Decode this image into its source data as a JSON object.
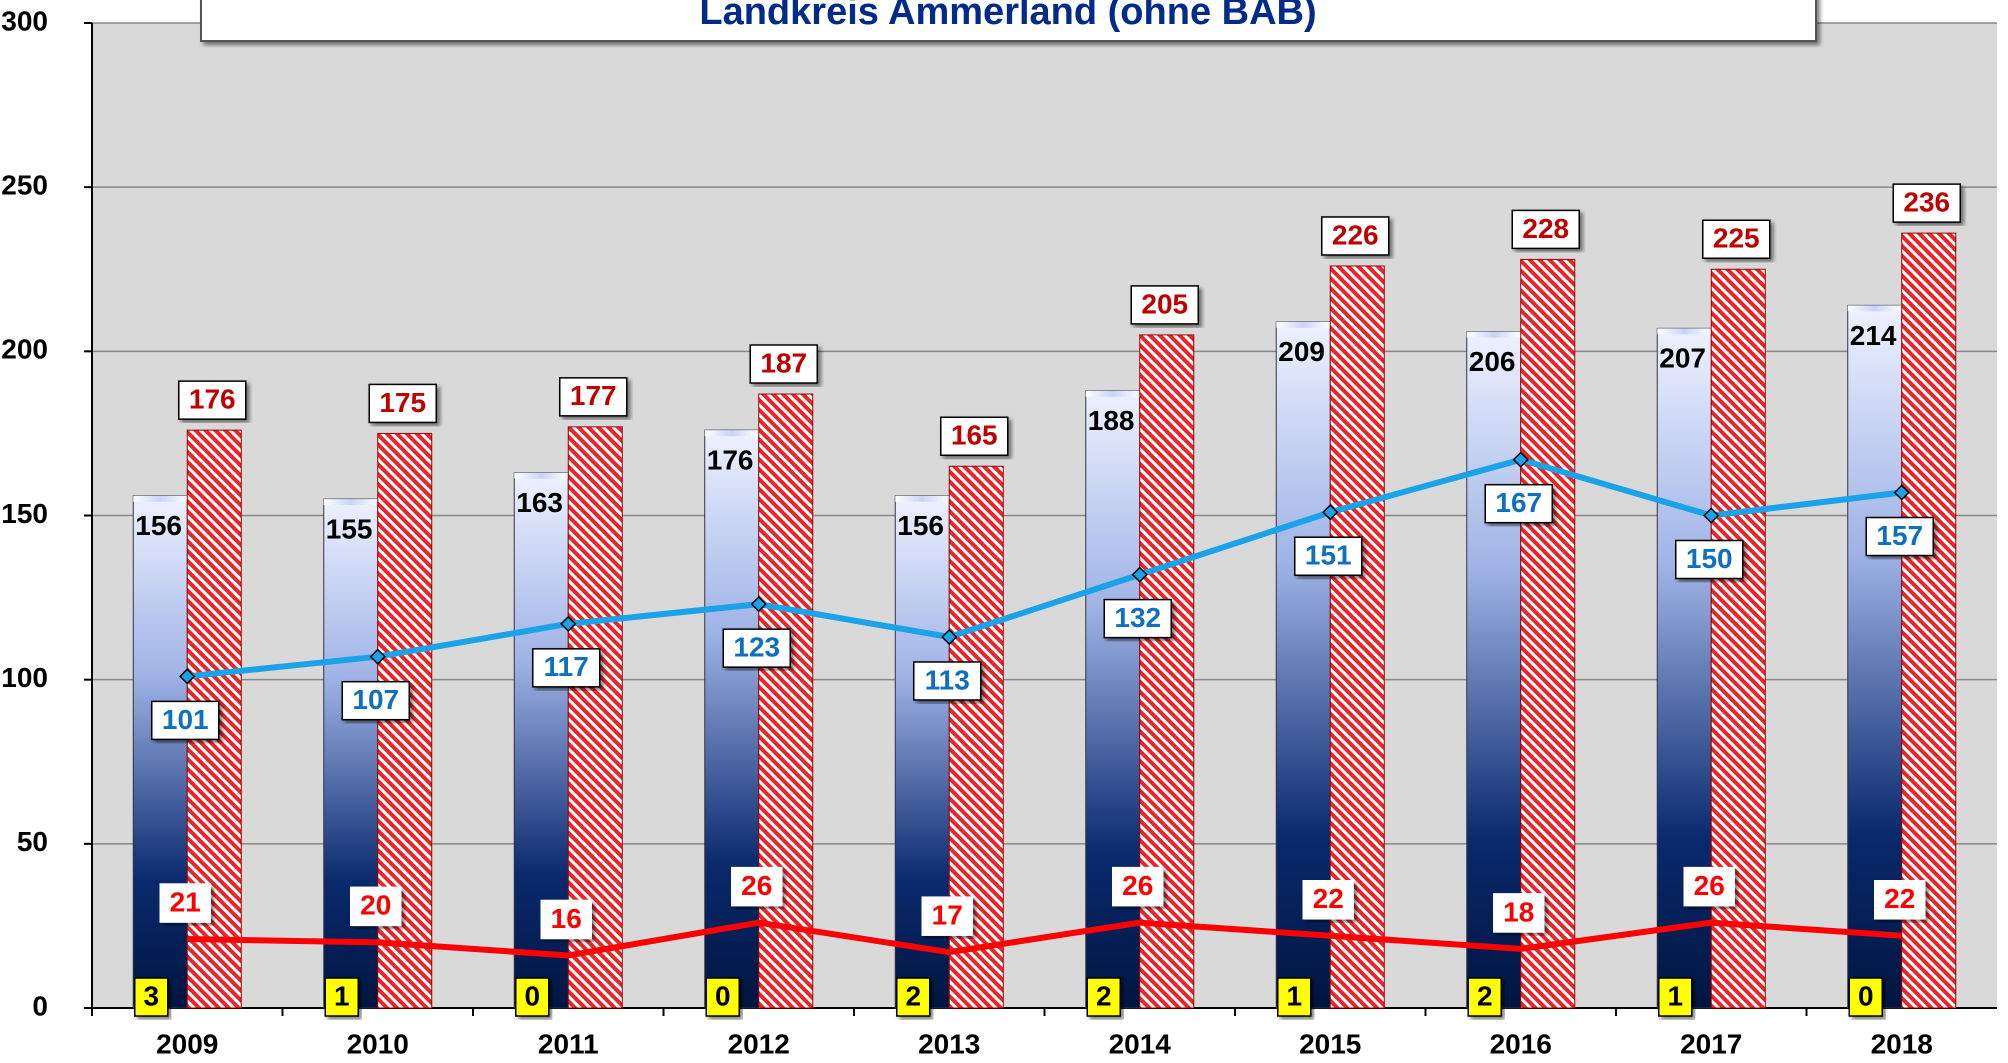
{
  "chart_data": {
    "type": "bar",
    "title": "Landkreis Ammerland (ohne BAB)",
    "categories": [
      "2009",
      "2010",
      "2011",
      "2012",
      "2013",
      "2014",
      "2015",
      "2016",
      "2017",
      "2018"
    ],
    "series": [
      {
        "type": "bar",
        "color": "#0a2a6e",
        "values": [
          156,
          155,
          163,
          176,
          156,
          188,
          209,
          206,
          207,
          214
        ]
      },
      {
        "type": "bar",
        "color": "#e8262a",
        "values": [
          176,
          175,
          177,
          187,
          165,
          205,
          226,
          228,
          225,
          236
        ]
      },
      {
        "type": "line",
        "color": "#1aa3e8",
        "values": [
          101,
          107,
          117,
          123,
          113,
          132,
          151,
          167,
          150,
          157
        ]
      },
      {
        "type": "line",
        "color": "#ff0000",
        "values": [
          21,
          20,
          16,
          26,
          17,
          26,
          22,
          18,
          26,
          22
        ]
      },
      {
        "type": "label",
        "color": "#ffff00",
        "values": [
          3,
          1,
          0,
          0,
          2,
          2,
          1,
          2,
          1,
          0
        ]
      }
    ],
    "ylim": [
      0,
      300
    ],
    "yticks": [
      0,
      50,
      100,
      150,
      200,
      250,
      300
    ],
    "grid": true
  }
}
